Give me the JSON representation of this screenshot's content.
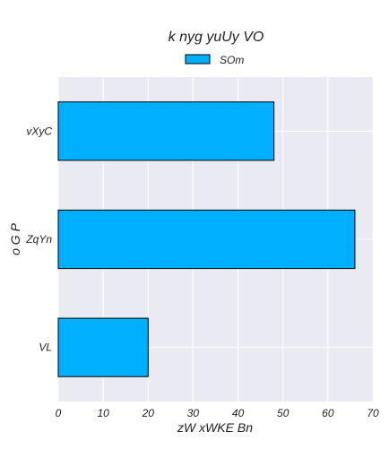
{
  "chart_data": {
    "type": "bar",
    "orientation": "horizontal",
    "title": "k nyg yuUy VO",
    "xlabel": "zW xWKE Bn",
    "ylabel": "o G P",
    "categories": [
      "vXyC",
      "ZqYn",
      "VL"
    ],
    "series": [
      {
        "name": "SOm",
        "values": [
          48,
          66,
          20
        ],
        "color": "#00b0ff"
      }
    ],
    "xlim": [
      0,
      70
    ],
    "xticks": [
      0,
      10,
      20,
      30,
      40,
      50,
      60,
      70
    ],
    "grid": true,
    "legend_position": "top-center",
    "colors": {
      "plot_background": "#eaeaf2",
      "grid": "#ffffff",
      "bar_edge": "#000000"
    }
  }
}
